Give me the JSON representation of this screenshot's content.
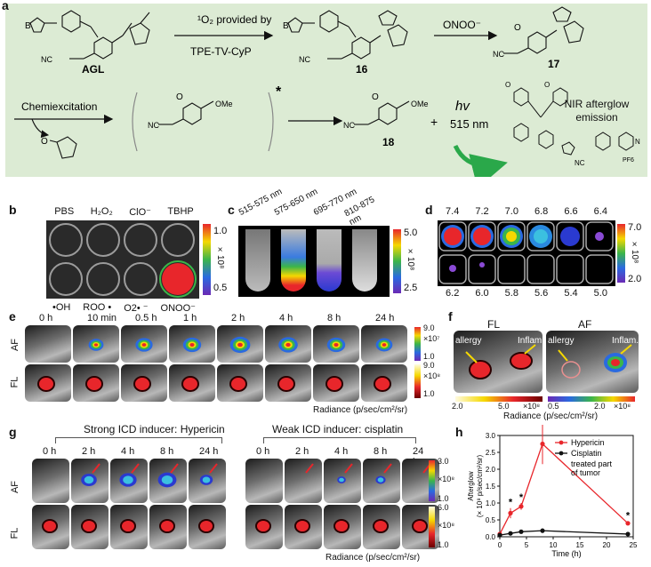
{
  "panel_labels": {
    "a": "a",
    "b": "b",
    "c": "c",
    "d": "d",
    "e": "e",
    "f": "f",
    "g": "g",
    "h": "h"
  },
  "panel_a": {
    "agl": "AGL",
    "step1_top": "¹O₂ provided by",
    "step1_bottom": "TPE-TV-CyP",
    "step2": "ONOO⁻",
    "cpd16": "16",
    "cpd17": "17",
    "cpd18": "18",
    "chemiexcitation": "Chemiexcitation",
    "hv": "hv",
    "wavelength": "515 nm",
    "afterglow": "NIR afterglow\nemission",
    "star": "*",
    "boron": "B",
    "nc": "NC",
    "ome": "OMe",
    "pf6": "PF6",
    "o": "O",
    "n_plus": "N"
  },
  "panel_b": {
    "top_labels": [
      "PBS",
      "H₂O₂",
      "ClO⁻",
      "TBHP"
    ],
    "bottom_labels": [
      "•OH",
      "ROO •",
      "O2• ⁻",
      "ONOO⁻"
    ],
    "scale_top": "1.0",
    "scale_bottom": "0.5",
    "scale_unit": "×10⁸"
  },
  "panel_c": {
    "bands": [
      "515-575 nm",
      "575-650 nm",
      "695-770 nm",
      "810-875 nm"
    ],
    "scale_top": "5.0",
    "scale_bottom": "2.5",
    "scale_unit": "×10⁸"
  },
  "panel_d": {
    "row1": [
      "7.4",
      "7.2",
      "7.0",
      "6.8",
      "6.6",
      "6.4"
    ],
    "row2": [
      "6.2",
      "6.0",
      "5.8",
      "5.6",
      "5.4",
      "5.0"
    ],
    "scale_top": "7.0",
    "scale_bottom": "2.0",
    "scale_unit": "×10⁸"
  },
  "panel_e": {
    "times": [
      "0 h",
      "10 min",
      "0.5 h",
      "1 h",
      "2 h",
      "4 h",
      "8 h",
      "24 h"
    ],
    "row_af": "AF",
    "row_fl": "FL",
    "scale_af_top": "9.0",
    "scale_af_bottom": "1.0",
    "scale_af_unit": "×10⁷",
    "scale_fl_top": "9.0",
    "scale_fl_bottom": "1.0",
    "scale_fl_unit": "×10⁸",
    "radiance": "Radiance (p/sec/cm²/sr)"
  },
  "panel_f": {
    "fl": "FL",
    "af": "AF",
    "allergy": "allergy",
    "inflam": "Inflam.",
    "fl_min": "2.0",
    "fl_max": "5.0",
    "fl_unit": "×10⁸",
    "af_min": "0.5",
    "af_max": "2.0",
    "af_unit": "×10⁸",
    "radiance": "Radiance (p/sec/cm²/sr)"
  },
  "panel_g": {
    "strong": "Strong ICD inducer: Hypericin",
    "weak": "Weak ICD inducer: cisplatin",
    "times": [
      "0 h",
      "2 h",
      "4 h",
      "8 h",
      "24 h"
    ],
    "row_af": "AF",
    "row_fl": "FL",
    "scale_af_top": "3.0",
    "scale_af_bottom": "1.0",
    "scale_af_unit": "×10⁸",
    "scale_fl_top": "6.0",
    "scale_fl_bottom": "1.0",
    "scale_fl_unit": "×10⁸",
    "radiance": "Radiance (p/sec/cm²/sr)"
  },
  "colors": {
    "panel_a_bg": "#dcebd4",
    "arrow_green": "#2aa84a",
    "hypericin": "#e8262b",
    "cisplatin": "#111111",
    "marker_arrow": "#e8262b",
    "callout": "#f5d800"
  },
  "chart_data": {
    "type": "line",
    "xlabel": "Time (h)",
    "ylabel": "Afterglow\n(× 10⁸ p/sec/cm²/sr)",
    "xlim": [
      0,
      25
    ],
    "ylim": [
      0,
      3.0
    ],
    "xticks": [
      "0",
      "5",
      "10",
      "15",
      "20",
      "25"
    ],
    "yticks": [
      "0.0",
      "0.5",
      "1.0",
      "1.5",
      "2.0",
      "2.5",
      "3.0"
    ],
    "x": [
      0,
      2,
      4,
      8,
      24
    ],
    "series": [
      {
        "name": "Hypericin",
        "values": [
          0.08,
          0.7,
          0.9,
          2.75,
          0.4
        ],
        "err": [
          0.04,
          0.15,
          0.1,
          0.6,
          0.06
        ],
        "color": "#e8262b"
      },
      {
        "name": "Cisplatin",
        "values": [
          0.05,
          0.1,
          0.15,
          0.18,
          0.08
        ],
        "err": [
          0.02,
          0.03,
          0.03,
          0.03,
          0.02
        ],
        "color": "#111111"
      }
    ],
    "legend_note": "treated part\nof tumor",
    "annotations": [
      {
        "x": 2,
        "text": "*"
      },
      {
        "x": 4,
        "text": "*"
      },
      {
        "x": 8,
        "text": "**"
      },
      {
        "x": 24,
        "text": "*"
      }
    ]
  }
}
